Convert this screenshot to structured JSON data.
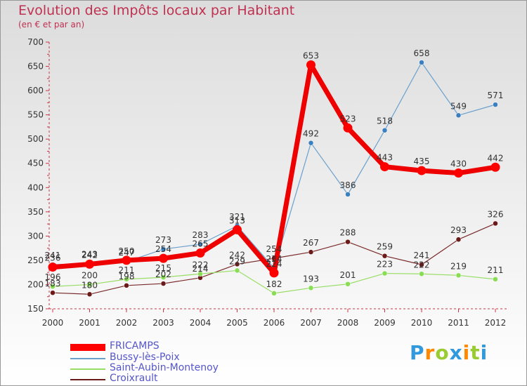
{
  "chart_data": {
    "type": "line",
    "title": "Evolution des Impôts locaux par Habitant",
    "subtitle": "(en € et par an)",
    "xlabel": "",
    "ylabel": "",
    "x": [
      "2000",
      "2001",
      "2002",
      "2003",
      "2004",
      "2005",
      "2006",
      "2007",
      "2008",
      "2009",
      "2010",
      "2011",
      "2012"
    ],
    "ylim": [
      150,
      700
    ],
    "yticks": [
      150,
      200,
      250,
      300,
      350,
      400,
      450,
      500,
      550,
      600,
      650,
      700
    ],
    "grid": false,
    "legend_position": "bottom-left",
    "series": [
      {
        "name": "FRICAMPS",
        "color": "#ff0000",
        "values": [
          236,
          242,
          250,
          254,
          265,
          313,
          224,
          653,
          523,
          443,
          435,
          430,
          442
        ]
      },
      {
        "name": "Bussy-lès-Poix",
        "color": "#6aa0cc",
        "values": [
          241,
          243,
          247,
          273,
          283,
          321,
          234,
          492,
          386,
          518,
          658,
          549,
          571
        ]
      },
      {
        "name": "Saint-Aubin-Montenoy",
        "color": "#99dd66",
        "values": [
          196,
          200,
          211,
          215,
          222,
          229,
          182,
          193,
          201,
          223,
          222,
          219,
          211
        ]
      },
      {
        "name": "Croixrault",
        "color": "#6b1a1a",
        "values": [
          183,
          180,
          198,
          202,
          214,
          242,
          254,
          267,
          288,
          259,
          241,
          293,
          326
        ]
      }
    ]
  },
  "logo": {
    "letters": [
      "P",
      "r",
      "o",
      "x",
      "i",
      "t",
      "i"
    ],
    "colors": [
      "#3399dd",
      "#ff8800",
      "#99cc33",
      "#3399dd",
      "#ff8800",
      "#99cc33",
      "#3399dd"
    ]
  }
}
